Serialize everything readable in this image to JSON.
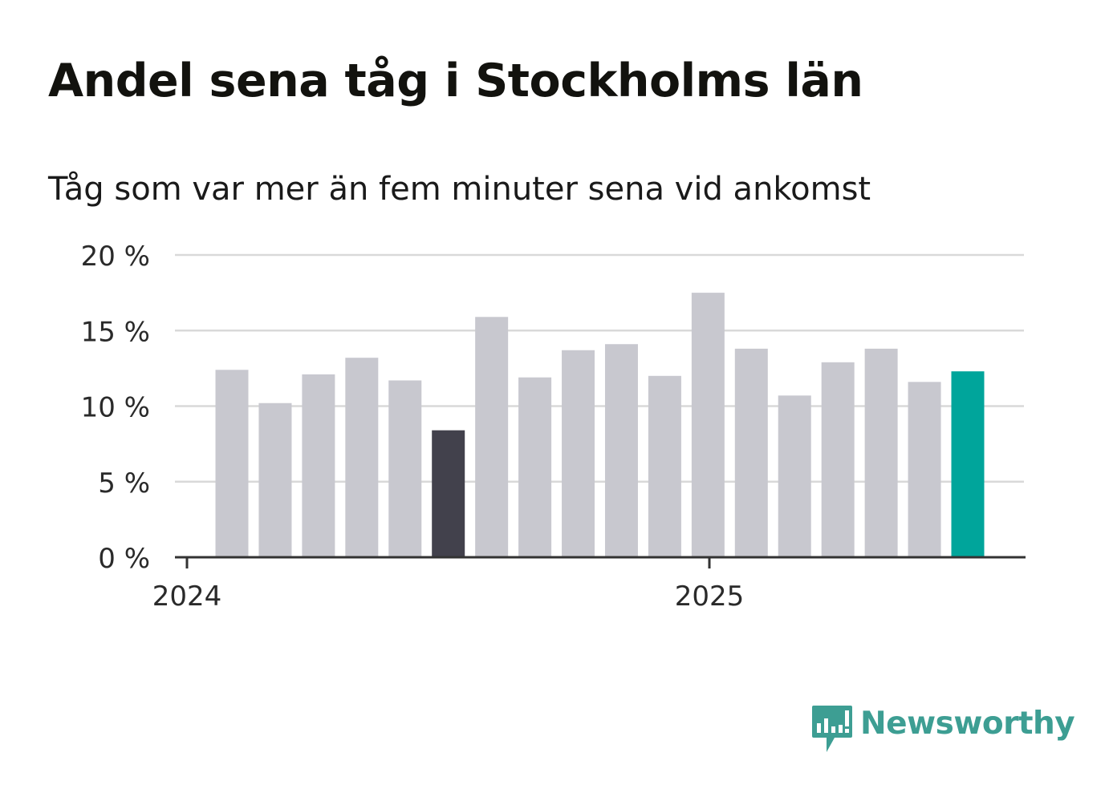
{
  "title": "Andel sena tåg i Stockholms län",
  "subtitle": "Tåg som var mer än fem minuter sena vid ankomst",
  "chart_data": {
    "type": "bar",
    "title": "Andel sena tåg i Stockholms län",
    "subtitle": "Tåg som var mer än fem minuter sena vid ankomst",
    "values": [
      12.4,
      10.2,
      12.1,
      13.2,
      11.7,
      8.4,
      15.9,
      11.9,
      13.7,
      14.1,
      12.0,
      17.5,
      13.8,
      10.7,
      12.9,
      13.8,
      11.6,
      12.3
    ],
    "highlight": {
      "min_index": 5,
      "latest_index": 17
    },
    "colors": {
      "default": "#c8c8cf",
      "min": "#42414c",
      "latest": "#00a59b",
      "grid": "#d9d9d9",
      "axis": "#333333"
    },
    "y_ticks": [
      "0 %",
      "5 %",
      "10 %",
      "15 %",
      "20 %"
    ],
    "ylim": [
      0,
      20
    ],
    "x_tick_labels": [
      "2024",
      "2025"
    ],
    "grid": true,
    "legend": "none"
  },
  "logo": {
    "text": "Newsworthy",
    "icon": "newsworthy-chart-bubble-icon",
    "color": "#3d9e93"
  }
}
